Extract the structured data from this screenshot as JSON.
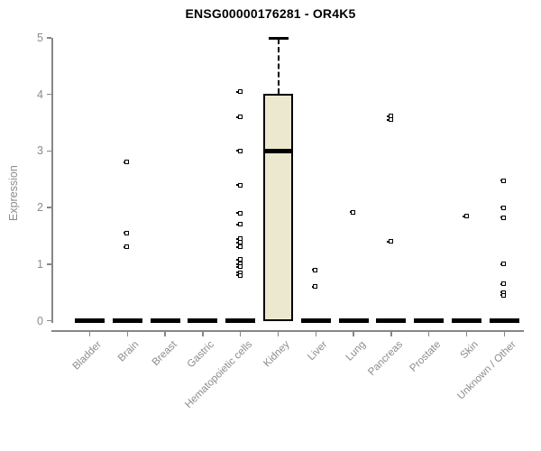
{
  "chart_data": {
    "type": "box",
    "title": "ENSG00000176281 - OR4K5",
    "xlabel": "",
    "ylabel": "Expression",
    "ylim": [
      0,
      5
    ],
    "yticks": [
      0,
      1,
      2,
      3,
      4,
      5
    ],
    "grid": false,
    "legend": "none",
    "categories": [
      "Bladder",
      "Brain",
      "Breast",
      "Gastric",
      "Hematopoietic cells",
      "Kidney",
      "Liver",
      "Lung",
      "Pancreas",
      "Prostate",
      "Skin",
      "Unknown / Other"
    ],
    "boxes": [
      {
        "category": "Bladder",
        "q1": 0,
        "median": 0,
        "q3": 0,
        "whisker_low": 0,
        "whisker_high": 0,
        "outliers": []
      },
      {
        "category": "Brain",
        "q1": 0,
        "median": 0,
        "q3": 0,
        "whisker_low": 0,
        "whisker_high": 0,
        "outliers": [
          2.8,
          1.55,
          1.3
        ]
      },
      {
        "category": "Breast",
        "q1": 0,
        "median": 0,
        "q3": 0,
        "whisker_low": 0,
        "whisker_high": 0,
        "outliers": []
      },
      {
        "category": "Gastric",
        "q1": 0,
        "median": 0,
        "q3": 0,
        "whisker_low": 0,
        "whisker_high": 0,
        "outliers": []
      },
      {
        "category": "Hematopoietic cells",
        "q1": 0,
        "median": 0,
        "q3": 0,
        "whisker_low": 0,
        "whisker_high": 0,
        "outliers": [
          4.05,
          3.6,
          3.0,
          2.4,
          1.9,
          1.7,
          1.45,
          1.38,
          1.3,
          1.08,
          1.0,
          0.95,
          0.85,
          0.8
        ]
      },
      {
        "category": "Kidney",
        "q1": 0,
        "median": 3,
        "q3": 4,
        "whisker_low": 0,
        "whisker_high": 5,
        "outliers": []
      },
      {
        "category": "Liver",
        "q1": 0,
        "median": 0,
        "q3": 0,
        "whisker_low": 0,
        "whisker_high": 0,
        "outliers": [
          0.9,
          0.6
        ]
      },
      {
        "category": "Lung",
        "q1": 0,
        "median": 0,
        "q3": 0,
        "whisker_low": 0,
        "whisker_high": 0,
        "outliers": [
          1.92
        ]
      },
      {
        "category": "Pancreas",
        "q1": 0,
        "median": 0,
        "q3": 0,
        "whisker_low": 0,
        "whisker_high": 0,
        "outliers": [
          3.62,
          3.55,
          1.4
        ]
      },
      {
        "category": "Prostate",
        "q1": 0,
        "median": 0,
        "q3": 0,
        "whisker_low": 0,
        "whisker_high": 0,
        "outliers": []
      },
      {
        "category": "Skin",
        "q1": 0,
        "median": 0,
        "q3": 0,
        "whisker_low": 0,
        "whisker_high": 0,
        "outliers": [
          1.85
        ]
      },
      {
        "category": "Unknown / Other",
        "q1": 0,
        "median": 0,
        "q3": 0,
        "whisker_low": 0,
        "whisker_high": 0,
        "outliers": [
          2.48,
          2.0,
          1.82,
          1.0,
          0.65,
          0.5,
          0.45
        ]
      }
    ],
    "colors": {
      "box_fill": "#ece8cf",
      "box_border": "#000000",
      "median": "#000000",
      "whisker": "#000000",
      "outlier": "#000000",
      "axis": "#878787",
      "tick_label": "#8c8c8c",
      "title": "#000000",
      "background": "#ffffff"
    }
  }
}
